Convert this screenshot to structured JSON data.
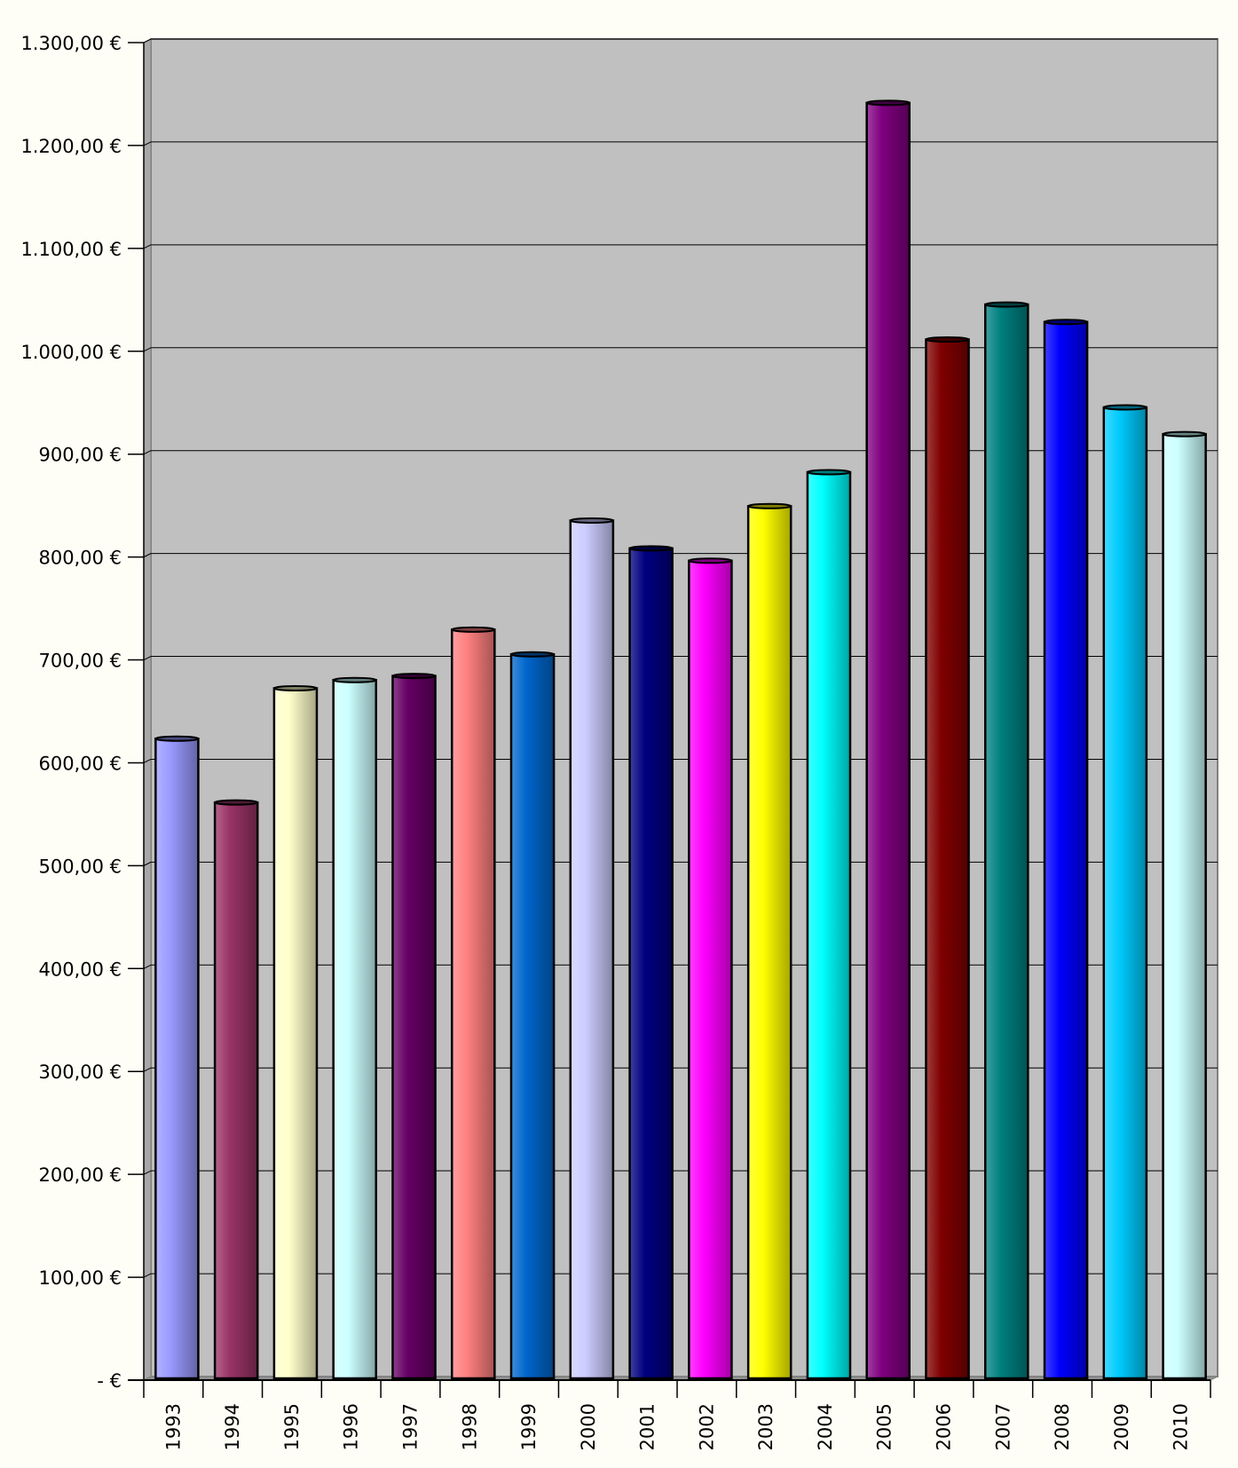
{
  "colors": {
    "page_background": "#fefef6",
    "plot_background": "#c0c0c0",
    "gridline": "#000000",
    "bar_outline": "#000000"
  },
  "chart_data": {
    "type": "bar",
    "title": "",
    "xlabel": "",
    "ylabel": "",
    "grid": true,
    "legend": "none",
    "ylim": [
      0,
      1300
    ],
    "y_ticks": [
      {
        "value": 0,
        "label": "-   €"
      },
      {
        "value": 100,
        "label": "100,00 €"
      },
      {
        "value": 200,
        "label": "200,00 €"
      },
      {
        "value": 300,
        "label": "300,00 €"
      },
      {
        "value": 400,
        "label": "400,00 €"
      },
      {
        "value": 500,
        "label": "500,00 €"
      },
      {
        "value": 600,
        "label": "600,00 €"
      },
      {
        "value": 700,
        "label": "700,00 €"
      },
      {
        "value": 800,
        "label": "800,00 €"
      },
      {
        "value": 900,
        "label": "900,00 €"
      },
      {
        "value": 1000,
        "label": "1.000,00 €"
      },
      {
        "value": 1100,
        "label": "1.100,00 €"
      },
      {
        "value": 1200,
        "label": "1.200,00 €"
      },
      {
        "value": 1300,
        "label": "1.300,00 €"
      }
    ],
    "categories": [
      "1993",
      "1994",
      "1995",
      "1996",
      "1997",
      "1998",
      "1999",
      "2000",
      "2001",
      "2002",
      "2003",
      "2004",
      "2005",
      "2006",
      "2007",
      "2008",
      "2009",
      "2010"
    ],
    "values": [
      620,
      558,
      669,
      677,
      681,
      726,
      702,
      832,
      805,
      793,
      846,
      879,
      1238,
      1008,
      1042,
      1025,
      942,
      916
    ],
    "bar_colors": [
      "#9999ff",
      "#993366",
      "#ffffcc",
      "#ccffff",
      "#660066",
      "#ff8080",
      "#0066cc",
      "#ccccff",
      "#000080",
      "#ff00ff",
      "#ffff00",
      "#00ffff",
      "#800080",
      "#800000",
      "#008080",
      "#0000ff",
      "#00ccff",
      "#ccffff"
    ]
  }
}
